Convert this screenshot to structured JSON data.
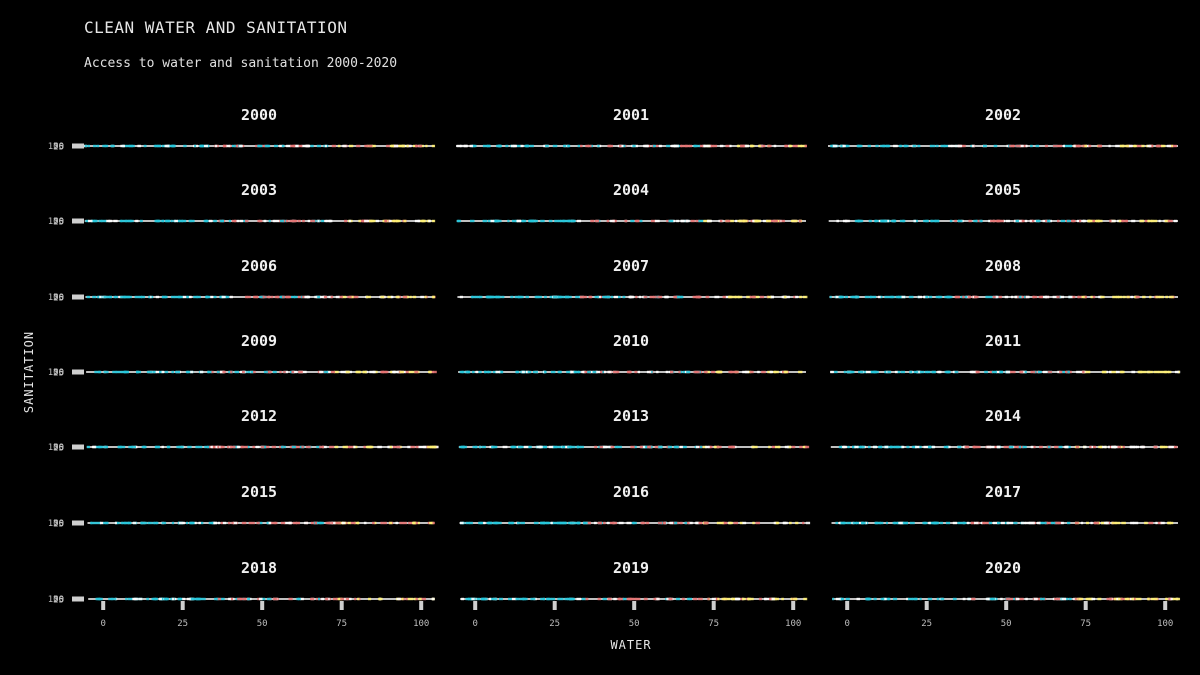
{
  "title": "CLEAN WATER AND SANITATION",
  "subtitle": "Access to water and sanitation 2000-2020",
  "chart_data": {
    "type": "scatter",
    "xlabel": "WATER",
    "ylabel": "SANITATION",
    "xlim": [
      0,
      100
    ],
    "ylim": [
      0,
      100
    ],
    "x_ticks": [
      "0",
      "25",
      "50",
      "75",
      "100"
    ],
    "y_ticks": [
      "0",
      "25",
      "50",
      "75",
      "100"
    ],
    "grid": false,
    "palette": [
      "#26c6da",
      "#e57373",
      "#fff176",
      "#ffffff"
    ],
    "facets": [
      {
        "label": "2000"
      },
      {
        "label": "2001"
      },
      {
        "label": "2002"
      },
      {
        "label": "2003"
      },
      {
        "label": "2004"
      },
      {
        "label": "2005"
      },
      {
        "label": "2006"
      },
      {
        "label": "2007"
      },
      {
        "label": "2008"
      },
      {
        "label": "2009"
      },
      {
        "label": "2010"
      },
      {
        "label": "2011"
      },
      {
        "label": "2012"
      },
      {
        "label": "2013"
      },
      {
        "label": "2014"
      },
      {
        "label": "2015"
      },
      {
        "label": "2016"
      },
      {
        "label": "2017"
      },
      {
        "label": "2018"
      },
      {
        "label": "2019"
      },
      {
        "label": "2020"
      }
    ]
  }
}
